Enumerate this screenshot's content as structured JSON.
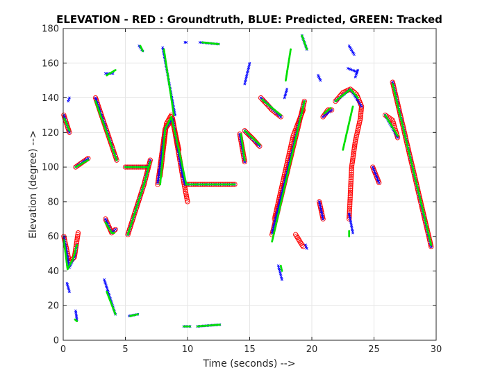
{
  "chart_data": {
    "type": "scatter",
    "title": "ELEVATION - RED : Groundtruth, BLUE: Predicted, GREEN: Tracked",
    "xlabel": "Time (seconds) -->",
    "ylabel": "Elevation (degree) -->",
    "xlim": [
      0,
      30
    ],
    "ylim": [
      0,
      180
    ],
    "xticks": [
      0,
      5,
      10,
      15,
      20,
      25,
      30
    ],
    "yticks": [
      0,
      20,
      40,
      60,
      80,
      100,
      120,
      140,
      160,
      180
    ],
    "xtick_labels": [
      "0",
      "5",
      "10",
      "15",
      "20",
      "25",
      "30"
    ],
    "ytick_labels": [
      "0",
      "20",
      "40",
      "60",
      "80",
      "100",
      "120",
      "140",
      "160",
      "180"
    ],
    "grid": true,
    "colors": {
      "groundtruth": "#ff0000",
      "predicted": "#0000ff",
      "tracked": "#00e000",
      "grid": "#e6e6e6",
      "axis": "#262626"
    },
    "series": [
      {
        "key": "groundtruth",
        "marker": "circle",
        "color": "#ff0000",
        "segments": [
          [
            [
              0.05,
              60
            ],
            [
              0.5,
              45
            ],
            [
              0.9,
              48
            ],
            [
              1.2,
              62
            ]
          ],
          [
            [
              0.05,
              130
            ],
            [
              0.5,
              120
            ]
          ],
          [
            [
              1.0,
              100
            ],
            [
              2.0,
              105
            ]
          ],
          [
            [
              2.6,
              140
            ],
            [
              4.3,
              104
            ]
          ],
          [
            [
              3.4,
              70
            ],
            [
              3.9,
              62
            ],
            [
              4.2,
              64
            ]
          ],
          [
            [
              5.2,
              61
            ],
            [
              6.5,
              90
            ],
            [
              7.0,
              104
            ]
          ],
          [
            [
              5.0,
              100
            ],
            [
              6.8,
              100
            ]
          ],
          [
            [
              7.6,
              90
            ],
            [
              8.2,
              122
            ],
            [
              8.8,
              128
            ],
            [
              9.6,
              95
            ],
            [
              10.0,
              80
            ]
          ],
          [
            [
              7.8,
              95
            ],
            [
              8.3,
              125
            ],
            [
              8.7,
              130
            ],
            [
              9.3,
              110
            ]
          ],
          [
            [
              9.9,
              90
            ],
            [
              13.8,
              90
            ]
          ],
          [
            [
              14.2,
              119
            ],
            [
              14.6,
              103
            ]
          ],
          [
            [
              14.6,
              121
            ],
            [
              15.3,
              116
            ],
            [
              15.8,
              112
            ]
          ],
          [
            [
              15.9,
              140
            ],
            [
              16.8,
              133
            ],
            [
              17.5,
              129
            ]
          ],
          [
            [
              16.8,
              61
            ],
            [
              19.4,
              138
            ]
          ],
          [
            [
              17.0,
              70
            ],
            [
              18.5,
              118
            ],
            [
              19.3,
              133
            ]
          ],
          [
            [
              18.7,
              61
            ],
            [
              19.3,
              54
            ]
          ],
          [
            [
              20.6,
              80
            ],
            [
              20.9,
              70
            ]
          ],
          [
            [
              20.9,
              129
            ],
            [
              21.3,
              133
            ],
            [
              21.6,
              133
            ]
          ],
          [
            [
              21.9,
              138
            ],
            [
              22.5,
              143
            ],
            [
              23.1,
              145
            ],
            [
              23.6,
              142
            ],
            [
              24.0,
              135
            ],
            [
              23.9,
              128
            ],
            [
              23.5,
              115
            ],
            [
              23.2,
              100
            ],
            [
              23.0,
              70
            ]
          ],
          [
            [
              24.9,
              100
            ],
            [
              25.4,
              91
            ]
          ],
          [
            [
              25.9,
              130
            ],
            [
              26.5,
              127
            ],
            [
              26.9,
              117
            ]
          ],
          [
            [
              26.5,
              149
            ],
            [
              29.6,
              54
            ]
          ]
        ]
      },
      {
        "key": "predicted",
        "marker": "cross",
        "color": "#0000ff",
        "segments": [
          [
            [
              0.05,
              60
            ],
            [
              0.5,
              42
            ],
            [
              0.9,
              48
            ],
            [
              1.1,
              55
            ]
          ],
          [
            [
              0.05,
              130
            ],
            [
              0.5,
              120
            ]
          ],
          [
            [
              0.3,
              33
            ],
            [
              0.5,
              28
            ]
          ],
          [
            [
              0.4,
              138
            ],
            [
              0.5,
              140
            ]
          ],
          [
            [
              1.0,
              17
            ],
            [
              1.1,
              12
            ]
          ],
          [
            [
              1.0,
              100
            ],
            [
              2.0,
              105
            ]
          ],
          [
            [
              2.6,
              140
            ],
            [
              4.3,
              104
            ]
          ],
          [
            [
              3.3,
              35
            ],
            [
              4.2,
              15
            ]
          ],
          [
            [
              3.4,
              70
            ],
            [
              3.9,
              62
            ],
            [
              4.2,
              64
            ]
          ],
          [
            [
              3.4,
              154
            ],
            [
              4.0,
              154
            ]
          ],
          [
            [
              5.2,
              61
            ],
            [
              6.5,
              90
            ],
            [
              7.0,
              104
            ]
          ],
          [
            [
              5.0,
              100
            ],
            [
              6.8,
              100
            ]
          ],
          [
            [
              5.3,
              14
            ],
            [
              6.0,
              15
            ]
          ],
          [
            [
              6.1,
              170
            ],
            [
              6.4,
              167
            ]
          ],
          [
            [
              7.6,
              91
            ],
            [
              8.2,
              122
            ],
            [
              8.8,
              128
            ],
            [
              9.6,
              95
            ],
            [
              9.8,
              90
            ]
          ],
          [
            [
              8.0,
              169
            ],
            [
              9.0,
              130
            ]
          ],
          [
            [
              9.9,
              90
            ],
            [
              13.8,
              90
            ]
          ],
          [
            [
              9.7,
              8
            ],
            [
              10.2,
              8
            ]
          ],
          [
            [
              10.8,
              8
            ],
            [
              12.6,
              9
            ]
          ],
          [
            [
              11.0,
              172
            ],
            [
              12.5,
              171
            ]
          ],
          [
            [
              9.8,
              172
            ],
            [
              9.9,
              172
            ]
          ],
          [
            [
              14.2,
              119
            ],
            [
              14.6,
              103
            ]
          ],
          [
            [
              14.6,
              121
            ],
            [
              15.8,
              112
            ]
          ],
          [
            [
              14.6,
              148
            ],
            [
              15.0,
              160
            ]
          ],
          [
            [
              15.9,
              140
            ],
            [
              17.5,
              129
            ]
          ],
          [
            [
              16.8,
              62
            ],
            [
              19.4,
              138
            ]
          ],
          [
            [
              17.3,
              43
            ],
            [
              17.6,
              35
            ]
          ],
          [
            [
              17.8,
              140
            ],
            [
              18.0,
              145
            ]
          ],
          [
            [
              19.2,
              176
            ],
            [
              19.6,
              168
            ]
          ],
          [
            [
              19.5,
              55
            ],
            [
              19.6,
              53
            ]
          ],
          [
            [
              20.6,
              80
            ],
            [
              20.9,
              70
            ]
          ],
          [
            [
              20.5,
              153
            ],
            [
              20.7,
              150
            ]
          ],
          [
            [
              20.9,
              129
            ],
            [
              21.6,
              133
            ]
          ],
          [
            [
              21.9,
              138
            ],
            [
              23.1,
              145
            ],
            [
              24.0,
              135
            ]
          ],
          [
            [
              23.0,
              73
            ],
            [
              23.3,
              62
            ]
          ],
          [
            [
              23.0,
              170
            ],
            [
              23.4,
              165
            ]
          ],
          [
            [
              22.9,
              157
            ],
            [
              23.6,
              155
            ]
          ],
          [
            [
              23.5,
              152
            ],
            [
              23.7,
              156
            ]
          ],
          [
            [
              24.9,
              100
            ],
            [
              25.4,
              91
            ]
          ],
          [
            [
              25.9,
              130
            ],
            [
              26.9,
              117
            ]
          ],
          [
            [
              26.5,
              149
            ],
            [
              29.6,
              54
            ]
          ]
        ]
      },
      {
        "key": "tracked",
        "marker": "point",
        "color": "#00e000",
        "segments": [
          [
            [
              0.05,
              58
            ],
            [
              0.35,
              41
            ],
            [
              0.8,
              47
            ],
            [
              1.1,
              55
            ]
          ],
          [
            [
              0.1,
              128
            ],
            [
              0.5,
              121
            ]
          ],
          [
            [
              0.95,
              12
            ],
            [
              1.1,
              11
            ]
          ],
          [
            [
              1.0,
              100
            ],
            [
              2.0,
              104
            ]
          ],
          [
            [
              2.6,
              138
            ],
            [
              4.3,
              104
            ]
          ],
          [
            [
              3.4,
              68
            ],
            [
              3.9,
              62
            ],
            [
              4.1,
              62
            ]
          ],
          [
            [
              3.5,
              28
            ],
            [
              4.2,
              15
            ]
          ],
          [
            [
              3.5,
              153
            ],
            [
              4.2,
              156
            ]
          ],
          [
            [
              5.2,
              61
            ],
            [
              6.5,
              90
            ],
            [
              7.0,
              103
            ]
          ],
          [
            [
              5.0,
              100
            ],
            [
              6.8,
              100
            ]
          ],
          [
            [
              5.4,
              14
            ],
            [
              6.0,
              15
            ]
          ],
          [
            [
              6.2,
              170
            ],
            [
              6.4,
              167
            ]
          ],
          [
            [
              7.8,
              90
            ],
            [
              8.2,
              122
            ],
            [
              8.7,
              129
            ],
            [
              9.3,
              110
            ],
            [
              9.9,
              90
            ]
          ],
          [
            [
              8.1,
              168
            ],
            [
              8.9,
              130
            ]
          ],
          [
            [
              9.9,
              90
            ],
            [
              13.8,
              90
            ]
          ],
          [
            [
              9.7,
              8
            ],
            [
              10.2,
              8
            ]
          ],
          [
            [
              10.8,
              8
            ],
            [
              12.6,
              9
            ]
          ],
          [
            [
              11.2,
              172
            ],
            [
              12.5,
              171
            ]
          ],
          [
            [
              14.3,
              119
            ],
            [
              14.6,
              104
            ]
          ],
          [
            [
              14.6,
              121
            ],
            [
              15.8,
              113
            ]
          ],
          [
            [
              16.0,
              139
            ],
            [
              17.5,
              130
            ]
          ],
          [
            [
              16.8,
              57
            ],
            [
              19.4,
              138
            ]
          ],
          [
            [
              17.5,
              43
            ],
            [
              17.6,
              40
            ]
          ],
          [
            [
              17.9,
              150
            ],
            [
              18.3,
              168
            ]
          ],
          [
            [
              19.2,
              176
            ],
            [
              19.6,
              168
            ]
          ],
          [
            [
              21.0,
              131
            ],
            [
              21.5,
              134
            ]
          ],
          [
            [
              21.9,
              138
            ],
            [
              23.1,
              145
            ],
            [
              23.7,
              140
            ]
          ],
          [
            [
              23.0,
              60
            ],
            [
              23.0,
              63
            ]
          ],
          [
            [
              22.5,
              110
            ],
            [
              23.3,
              135
            ]
          ],
          [
            [
              25.9,
              130
            ],
            [
              26.9,
              118
            ]
          ],
          [
            [
              26.5,
              148
            ],
            [
              29.6,
              55
            ]
          ]
        ]
      }
    ]
  }
}
